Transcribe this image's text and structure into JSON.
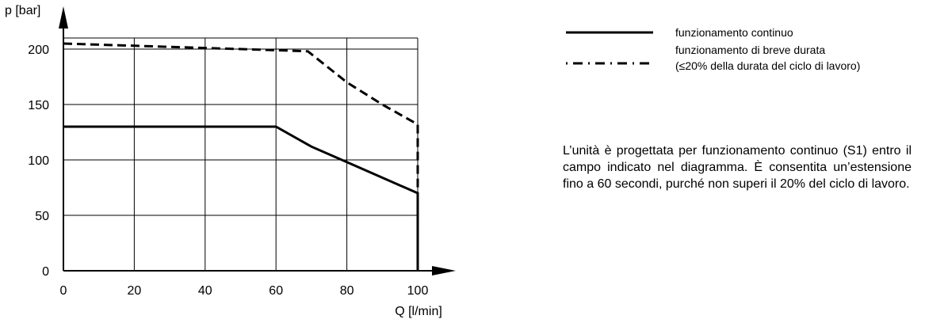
{
  "chart_data": {
    "type": "line",
    "xlabel": "Q [l/min]",
    "ylabel": "p [bar]",
    "xlim": [
      0,
      100
    ],
    "ylim": [
      0,
      200
    ],
    "xticks": [
      0,
      20,
      40,
      60,
      80,
      100
    ],
    "yticks": [
      0,
      50,
      100,
      150,
      200
    ],
    "grid": true,
    "series": [
      {
        "name": "funzionamento continuo",
        "style": "solid",
        "color": "#000000",
        "x": [
          0,
          60,
          70,
          80,
          100,
          100
        ],
        "y": [
          130,
          130,
          112,
          98,
          70,
          0
        ]
      },
      {
        "name": "funzionamento di breve durata",
        "style": "dashed",
        "color": "#000000",
        "x": [
          0,
          20,
          40,
          60,
          69,
          80,
          90,
          100,
          100
        ],
        "y": [
          205,
          203,
          201,
          199,
          198,
          170,
          150,
          132,
          0
        ]
      }
    ]
  },
  "legend": {
    "continuous_label": "funzionamento continuo",
    "short_label_line1": "funzionamento di breve durata",
    "short_label_line2": "(≤20% della durata del ciclo di lavoro)"
  },
  "note": {
    "text": "L’unità è progettata per funzionamento continuo (S1) entro il campo indicato nel diagramma. È consentita un’estensione fino a 60 secondi, purché non superi il 20% del ciclo di lavoro."
  }
}
